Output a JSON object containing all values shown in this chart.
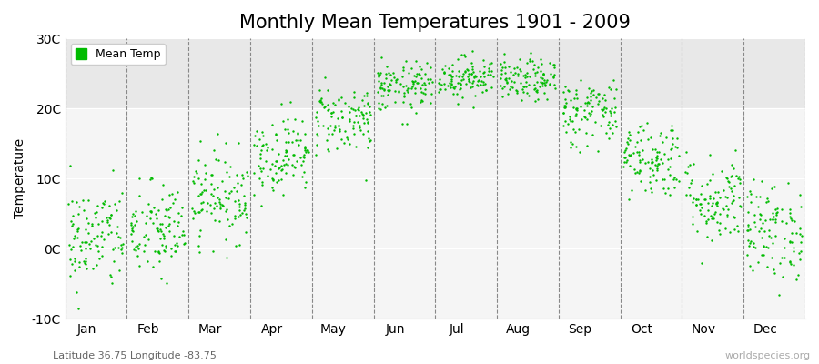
{
  "title": "Monthly Mean Temperatures 1901 - 2009",
  "ylabel": "Temperature",
  "xlabel": "",
  "bottom_left_label": "Latitude 36.75 Longitude -83.75",
  "bottom_right_label": "worldspecies.org",
  "legend_label": "Mean Temp",
  "dot_color": "#00bb00",
  "ylim": [
    -10,
    30
  ],
  "yticks": [
    -10,
    0,
    10,
    20,
    30
  ],
  "ytick_labels": [
    "-10C",
    "0C",
    "10C",
    "20C",
    "30C"
  ],
  "months": [
    "Jan",
    "Feb",
    "Mar",
    "Apr",
    "May",
    "Jun",
    "Jul",
    "Aug",
    "Sep",
    "Oct",
    "Nov",
    "Dec"
  ],
  "monthly_mean": [
    1.5,
    2.5,
    7.5,
    13.5,
    18.5,
    23.0,
    24.5,
    24.0,
    19.5,
    13.0,
    7.0,
    2.5
  ],
  "monthly_std": [
    3.8,
    3.5,
    3.2,
    2.8,
    2.5,
    1.8,
    1.5,
    1.5,
    2.5,
    2.8,
    3.2,
    3.5
  ],
  "n_years": 109,
  "seed": 42,
  "marker_size": 3,
  "title_fontsize": 15,
  "label_fontsize": 10,
  "tick_fontsize": 10,
  "bg_color": "#f5f5f5",
  "upper_band_color": "#e8e8e8",
  "upper_band_threshold": 20
}
